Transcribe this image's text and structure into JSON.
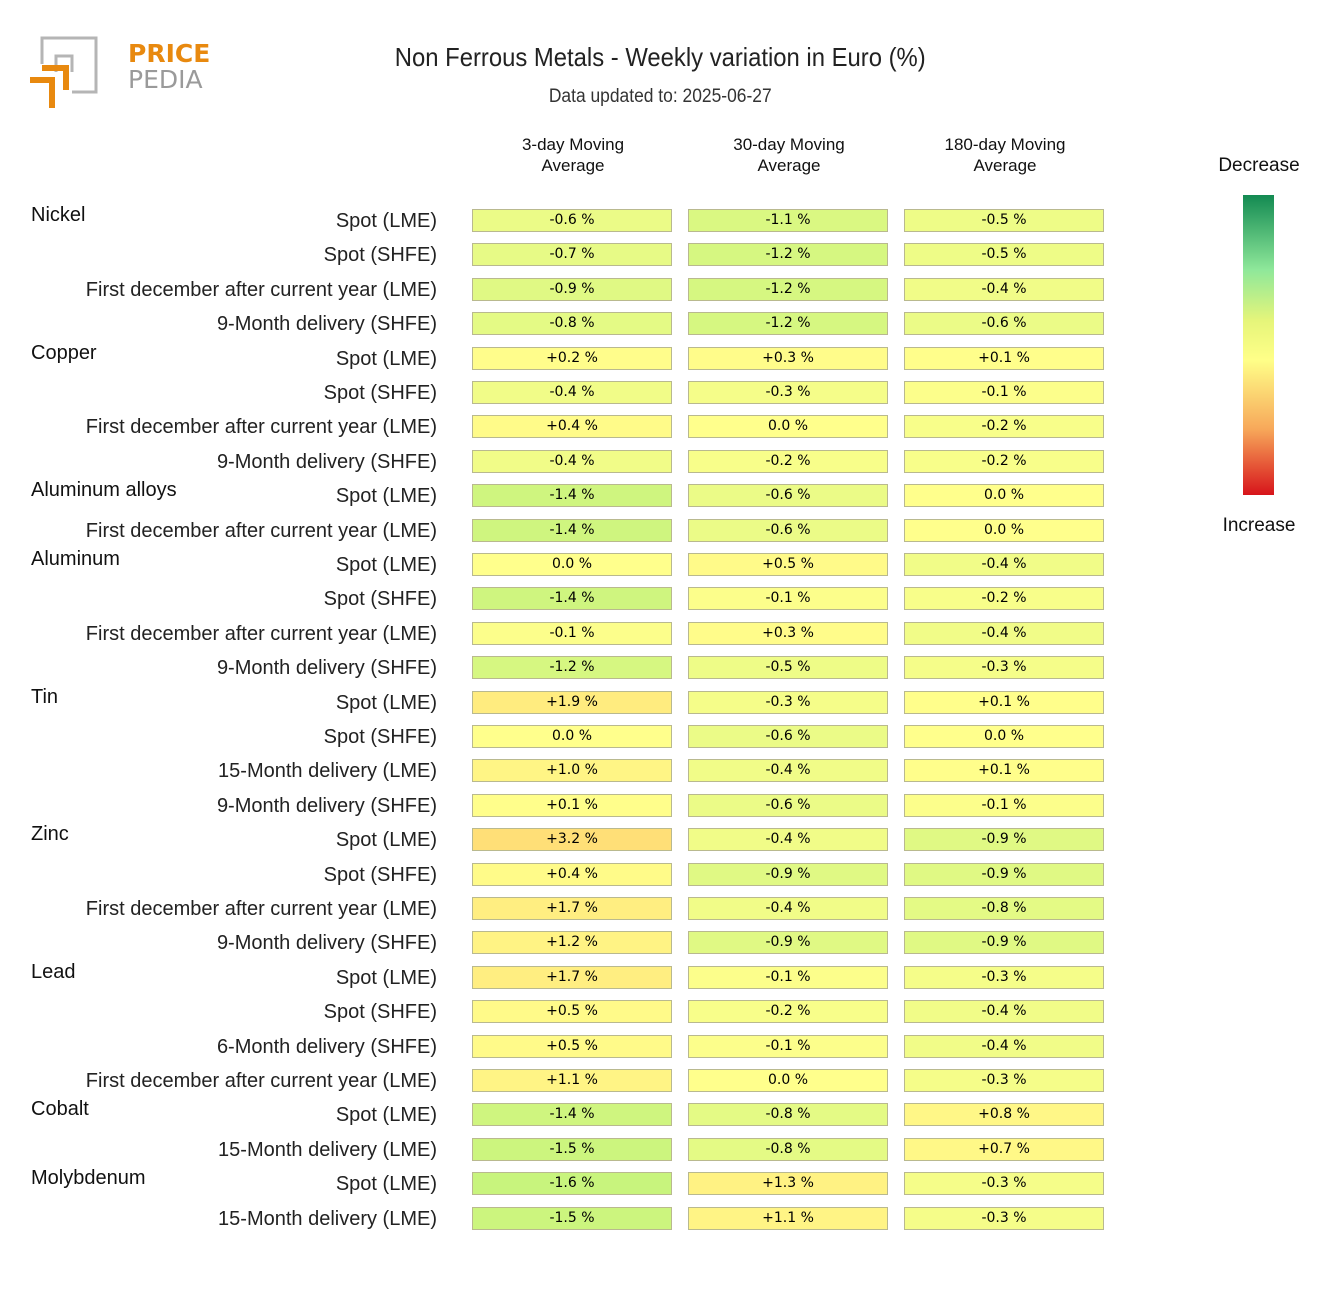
{
  "logo": {
    "word1": "PRICE",
    "word2": "PEDIA"
  },
  "header": {
    "title": "Non Ferrous Metals - Weekly variation in Euro (%)",
    "subtitle": "Data updated to: 2025-06-27"
  },
  "columns": [
    {
      "line1": "3-day Moving",
      "line2": "Average"
    },
    {
      "line1": "30-day Moving",
      "line2": "Average"
    },
    {
      "line1": "180-day Moving",
      "line2": "Average"
    }
  ],
  "legend": {
    "top": "Decrease",
    "bottom": "Increase"
  },
  "colors": {
    "decrease": "#138a52",
    "neutral": "#ffff88",
    "increase": "#d7141b"
  },
  "chart_data": {
    "type": "table",
    "title": "Non Ferrous Metals - Weekly variation in Euro (%)",
    "unit": "%",
    "columns": [
      "3-day Moving Average",
      "30-day Moving Average",
      "180-day Moving Average"
    ],
    "rows": [
      {
        "group": "Nickel",
        "label": "Spot (LME)",
        "values": [
          -0.6,
          -1.1,
          -0.5
        ],
        "display": [
          "-0.6 %",
          "-1.1 %",
          "-0.5 %"
        ]
      },
      {
        "group": "",
        "label": "Spot (SHFE)",
        "values": [
          -0.7,
          -1.2,
          -0.5
        ],
        "display": [
          "-0.7 %",
          "-1.2 %",
          "-0.5 %"
        ]
      },
      {
        "group": "",
        "label": "First december after current year (LME)",
        "values": [
          -0.9,
          -1.2,
          -0.4
        ],
        "display": [
          "-0.9 %",
          "-1.2 %",
          "-0.4 %"
        ]
      },
      {
        "group": "",
        "label": "9-Month delivery (SHFE)",
        "values": [
          -0.8,
          -1.2,
          -0.6
        ],
        "display": [
          "-0.8 %",
          "-1.2 %",
          "-0.6 %"
        ]
      },
      {
        "group": "Copper",
        "label": "Spot (LME)",
        "values": [
          0.2,
          0.3,
          0.1
        ],
        "display": [
          "+0.2 %",
          "+0.3 %",
          "+0.1 %"
        ]
      },
      {
        "group": "",
        "label": "Spot (SHFE)",
        "values": [
          -0.4,
          -0.3,
          -0.1
        ],
        "display": [
          "-0.4 %",
          "-0.3 %",
          "-0.1 %"
        ]
      },
      {
        "group": "",
        "label": "First december after current year (LME)",
        "values": [
          0.4,
          0.0,
          -0.2
        ],
        "display": [
          "+0.4 %",
          "0.0 %",
          "-0.2 %"
        ]
      },
      {
        "group": "",
        "label": "9-Month delivery (SHFE)",
        "values": [
          -0.4,
          -0.2,
          -0.2
        ],
        "display": [
          "-0.4 %",
          "-0.2 %",
          "-0.2 %"
        ]
      },
      {
        "group": "Aluminum alloys",
        "label": "Spot (LME)",
        "values": [
          -1.4,
          -0.6,
          0.0
        ],
        "display": [
          "-1.4 %",
          "-0.6 %",
          "0.0 %"
        ]
      },
      {
        "group": "",
        "label": "First december after current year (LME)",
        "values": [
          -1.4,
          -0.6,
          0.0
        ],
        "display": [
          "-1.4 %",
          "-0.6 %",
          "0.0 %"
        ]
      },
      {
        "group": "Aluminum",
        "label": "Spot (LME)",
        "values": [
          0.0,
          0.5,
          -0.4
        ],
        "display": [
          "0.0 %",
          "+0.5 %",
          "-0.4 %"
        ]
      },
      {
        "group": "",
        "label": "Spot (SHFE)",
        "values": [
          -1.4,
          -0.1,
          -0.2
        ],
        "display": [
          "-1.4 %",
          "-0.1 %",
          "-0.2 %"
        ]
      },
      {
        "group": "",
        "label": "First december after current year (LME)",
        "values": [
          -0.1,
          0.3,
          -0.4
        ],
        "display": [
          "-0.1 %",
          "+0.3 %",
          "-0.4 %"
        ]
      },
      {
        "group": "",
        "label": "9-Month delivery (SHFE)",
        "values": [
          -1.2,
          -0.5,
          -0.3
        ],
        "display": [
          "-1.2 %",
          "-0.5 %",
          "-0.3 %"
        ]
      },
      {
        "group": "Tin",
        "label": "Spot (LME)",
        "values": [
          1.9,
          -0.3,
          0.1
        ],
        "display": [
          "+1.9 %",
          "-0.3 %",
          "+0.1 %"
        ]
      },
      {
        "group": "",
        "label": "Spot (SHFE)",
        "values": [
          0.0,
          -0.6,
          0.0
        ],
        "display": [
          "0.0 %",
          "-0.6 %",
          "0.0 %"
        ]
      },
      {
        "group": "",
        "label": "15-Month delivery (LME)",
        "values": [
          1.0,
          -0.4,
          0.1
        ],
        "display": [
          "+1.0 %",
          "-0.4 %",
          "+0.1 %"
        ]
      },
      {
        "group": "",
        "label": "9-Month delivery (SHFE)",
        "values": [
          0.1,
          -0.6,
          -0.1
        ],
        "display": [
          "+0.1 %",
          "-0.6 %",
          "-0.1 %"
        ]
      },
      {
        "group": "Zinc",
        "label": "Spot (LME)",
        "values": [
          3.2,
          -0.4,
          -0.9
        ],
        "display": [
          "+3.2 %",
          "-0.4 %",
          "-0.9 %"
        ]
      },
      {
        "group": "",
        "label": "Spot (SHFE)",
        "values": [
          0.4,
          -0.9,
          -0.9
        ],
        "display": [
          "+0.4 %",
          "-0.9 %",
          "-0.9 %"
        ]
      },
      {
        "group": "",
        "label": "First december after current year (LME)",
        "values": [
          1.7,
          -0.4,
          -0.8
        ],
        "display": [
          "+1.7 %",
          "-0.4 %",
          "-0.8 %"
        ]
      },
      {
        "group": "",
        "label": "9-Month delivery (SHFE)",
        "values": [
          1.2,
          -0.9,
          -0.9
        ],
        "display": [
          "+1.2 %",
          "-0.9 %",
          "-0.9 %"
        ]
      },
      {
        "group": "Lead",
        "label": "Spot (LME)",
        "values": [
          1.7,
          -0.1,
          -0.3
        ],
        "display": [
          "+1.7 %",
          "-0.1 %",
          "-0.3 %"
        ]
      },
      {
        "group": "",
        "label": "Spot (SHFE)",
        "values": [
          0.5,
          -0.2,
          -0.4
        ],
        "display": [
          "+0.5 %",
          "-0.2 %",
          "-0.4 %"
        ]
      },
      {
        "group": "",
        "label": "6-Month delivery (SHFE)",
        "values": [
          0.5,
          -0.1,
          -0.4
        ],
        "display": [
          "+0.5 %",
          "-0.1 %",
          "-0.4 %"
        ]
      },
      {
        "group": "",
        "label": "First december after current year (LME)",
        "values": [
          1.1,
          0.0,
          -0.3
        ],
        "display": [
          "+1.1 %",
          "0.0 %",
          "-0.3 %"
        ]
      },
      {
        "group": "Cobalt",
        "label": "Spot (LME)",
        "values": [
          -1.4,
          -0.8,
          0.8
        ],
        "display": [
          "-1.4 %",
          "-0.8 %",
          "+0.8 %"
        ]
      },
      {
        "group": "",
        "label": "15-Month delivery (LME)",
        "values": [
          -1.5,
          -0.8,
          0.7
        ],
        "display": [
          "-1.5 %",
          "-0.8 %",
          "+0.7 %"
        ]
      },
      {
        "group": "Molybdenum",
        "label": "Spot (LME)",
        "values": [
          -1.6,
          1.3,
          -0.3
        ],
        "display": [
          "-1.6 %",
          "+1.3 %",
          "-0.3 %"
        ]
      },
      {
        "group": "",
        "label": "15-Month delivery (LME)",
        "values": [
          -1.5,
          1.1,
          -0.3
        ],
        "display": [
          "-1.5 %",
          "+1.1 %",
          "-0.3 %"
        ]
      }
    ]
  }
}
